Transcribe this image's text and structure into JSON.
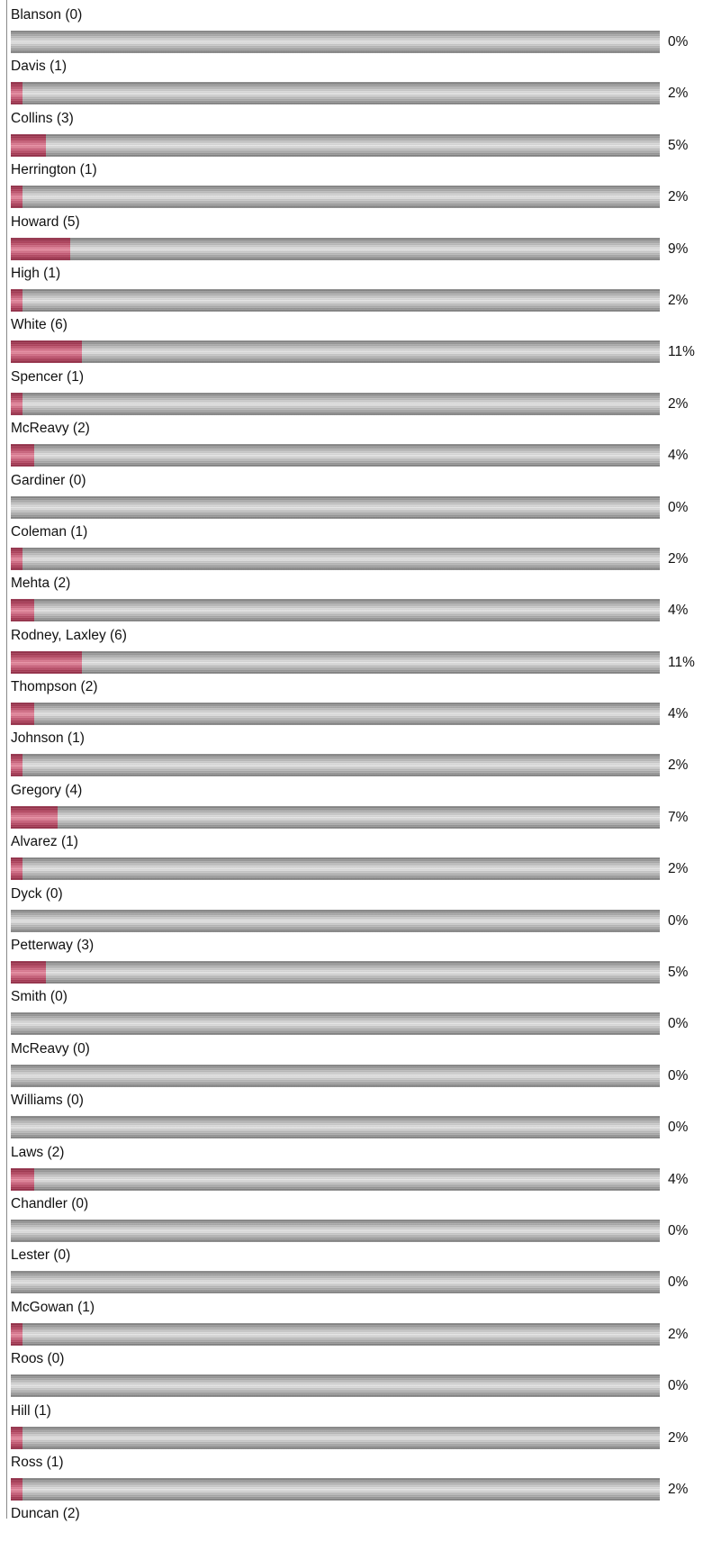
{
  "colors": {
    "bar_fill": "#c8546f",
    "bar_track": "#b8b8b8",
    "text": "#111111"
  },
  "poll": {
    "results": [
      {
        "label": "Blanson (0)",
        "percent_text": "0%",
        "fraction": 0.0
      },
      {
        "label": "Davis (1)",
        "percent_text": "2%",
        "fraction": 0.0182
      },
      {
        "label": "Collins (3)",
        "percent_text": "5%",
        "fraction": 0.0545
      },
      {
        "label": "Herrington (1)",
        "percent_text": "2%",
        "fraction": 0.0182
      },
      {
        "label": "Howard (5)",
        "percent_text": "9%",
        "fraction": 0.0909
      },
      {
        "label": "High (1)",
        "percent_text": "2%",
        "fraction": 0.0182
      },
      {
        "label": "White (6)",
        "percent_text": "11%",
        "fraction": 0.1091
      },
      {
        "label": "Spencer (1)",
        "percent_text": "2%",
        "fraction": 0.0182
      },
      {
        "label": "McReavy (2)",
        "percent_text": "4%",
        "fraction": 0.0364
      },
      {
        "label": "Gardiner (0)",
        "percent_text": "0%",
        "fraction": 0.0
      },
      {
        "label": "Coleman (1)",
        "percent_text": "2%",
        "fraction": 0.0182
      },
      {
        "label": "Mehta (2)",
        "percent_text": "4%",
        "fraction": 0.0364
      },
      {
        "label": "Rodney, Laxley (6)",
        "percent_text": "11%",
        "fraction": 0.1091
      },
      {
        "label": "Thompson (2)",
        "percent_text": "4%",
        "fraction": 0.0364
      },
      {
        "label": "Johnson (1)",
        "percent_text": "2%",
        "fraction": 0.0182
      },
      {
        "label": "Gregory (4)",
        "percent_text": "7%",
        "fraction": 0.0727
      },
      {
        "label": "Alvarez (1)",
        "percent_text": "2%",
        "fraction": 0.0182
      },
      {
        "label": "Dyck (0)",
        "percent_text": "0%",
        "fraction": 0.0
      },
      {
        "label": "Petterway (3)",
        "percent_text": "5%",
        "fraction": 0.0545
      },
      {
        "label": "Smith (0)",
        "percent_text": "0%",
        "fraction": 0.0
      },
      {
        "label": "McReavy (0)",
        "percent_text": "0%",
        "fraction": 0.0
      },
      {
        "label": "Williams (0)",
        "percent_text": "0%",
        "fraction": 0.0
      },
      {
        "label": "Laws (2)",
        "percent_text": "4%",
        "fraction": 0.0364
      },
      {
        "label": "Chandler (0)",
        "percent_text": "0%",
        "fraction": 0.0
      },
      {
        "label": "Lester (0)",
        "percent_text": "0%",
        "fraction": 0.0
      },
      {
        "label": "McGowan (1)",
        "percent_text": "2%",
        "fraction": 0.0182
      },
      {
        "label": "Roos (0)",
        "percent_text": "0%",
        "fraction": 0.0
      },
      {
        "label": "Hill (1)",
        "percent_text": "2%",
        "fraction": 0.0182
      },
      {
        "label": "Ross (1)",
        "percent_text": "2%",
        "fraction": 0.0182
      },
      {
        "label": "Duncan (2)",
        "percent_text": "",
        "fraction": null
      }
    ]
  }
}
